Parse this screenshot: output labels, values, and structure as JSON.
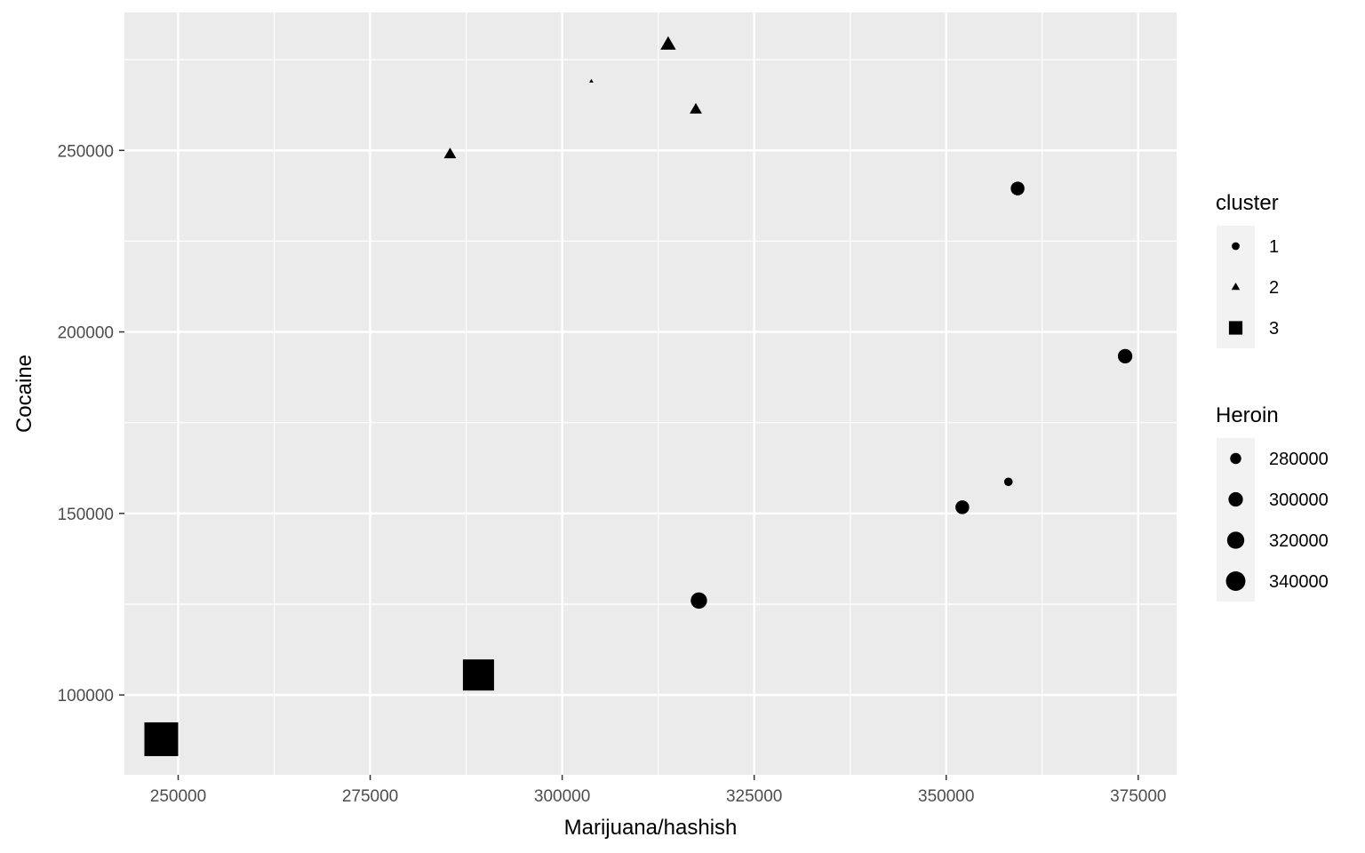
{
  "chart_data": {
    "type": "scatter",
    "title": "",
    "xlabel": "Marijuana/hashish",
    "ylabel": "Cocaine",
    "xlim": [
      243000,
      380000
    ],
    "ylim": [
      78000,
      288000
    ],
    "x_ticks": [
      250000,
      275000,
      300000,
      325000,
      350000,
      375000
    ],
    "x_tick_labels": [
      "250000",
      "275000",
      "300000",
      "325000",
      "350000",
      "375000"
    ],
    "y_ticks": [
      100000,
      150000,
      200000,
      250000
    ],
    "y_tick_labels": [
      "100000",
      "150000",
      "200000",
      "250000"
    ],
    "grid": true,
    "legend_position": "right",
    "shape_legend": {
      "title": "cluster",
      "entries": [
        {
          "label": "1",
          "shape": "circle"
        },
        {
          "label": "2",
          "shape": "triangle"
        },
        {
          "label": "3",
          "shape": "square"
        }
      ]
    },
    "size_legend": {
      "title": "Heroin",
      "entries": [
        {
          "label": "280000",
          "value": 280000
        },
        {
          "label": "300000",
          "value": 300000
        },
        {
          "label": "320000",
          "value": 320000
        },
        {
          "label": "340000",
          "value": 340000
        }
      ]
    },
    "points": [
      {
        "x": 359300,
        "y": 239500,
        "cluster": "1",
        "heroin": 300000
      },
      {
        "x": 373300,
        "y": 193300,
        "cluster": "1",
        "heroin": 305000
      },
      {
        "x": 358100,
        "y": 158700,
        "cluster": "1",
        "heroin": 270000
      },
      {
        "x": 352100,
        "y": 151700,
        "cluster": "1",
        "heroin": 300000
      },
      {
        "x": 317800,
        "y": 126000,
        "cluster": "1",
        "heroin": 320000
      },
      {
        "x": 313800,
        "y": 279200,
        "cluster": "2",
        "heroin": 305000
      },
      {
        "x": 303800,
        "y": 269100,
        "cluster": "2",
        "heroin": 255000
      },
      {
        "x": 317400,
        "y": 261300,
        "cluster": "2",
        "heroin": 285000
      },
      {
        "x": 285400,
        "y": 249000,
        "cluster": "2",
        "heroin": 285000
      },
      {
        "x": 289100,
        "y": 105500,
        "cluster": "3",
        "heroin": 335000
      },
      {
        "x": 247800,
        "y": 87800,
        "cluster": "3",
        "heroin": 350000
      }
    ]
  }
}
